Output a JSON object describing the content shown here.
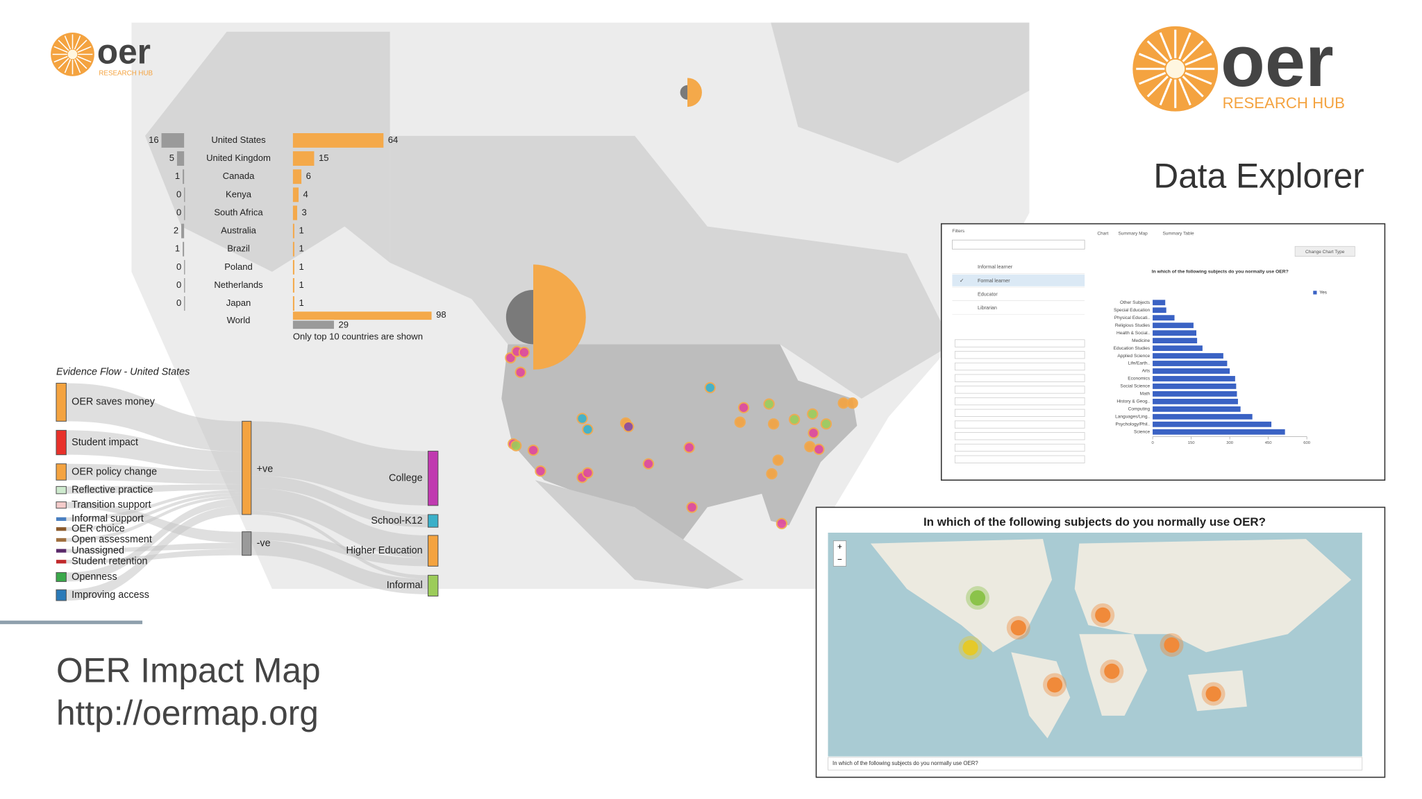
{
  "logo_small": {
    "name": "oer",
    "sub": "RESEARCH HUB"
  },
  "logo_large": {
    "name": "oer",
    "sub": "RESEARCH HUB"
  },
  "heading": "Data Explorer",
  "footer": {
    "title": "OER Impact Map",
    "url": "http://oermap.org"
  },
  "chart_data": [
    {
      "type": "bar",
      "categories": [
        "United States",
        "United Kingdom",
        "Canada",
        "Kenya",
        "South Africa",
        "Australia",
        "Brazil",
        "Poland",
        "Netherlands",
        "Japan",
        "World"
      ],
      "series": [
        {
          "color": "#9a9a9a",
          "values": [
            16,
            5,
            1,
            0,
            0,
            2,
            1,
            0,
            0,
            0,
            29
          ]
        },
        {
          "color": "#f4a94a",
          "values": [
            64,
            15,
            6,
            4,
            3,
            1,
            1,
            1,
            1,
            1,
            98
          ]
        }
      ],
      "note": "Only top 10 countries are shown"
    },
    {
      "type": "bar",
      "orientation": "horizontal",
      "title": "In which of the following subjects do you normally use OER?",
      "categories": [
        "Other Subjects",
        "Special Education",
        "Physical Educati..",
        "Religious Studies",
        "Health & Social..",
        "Medicine",
        "Education Studies",
        "Applied Science",
        "Life/Earth..",
        "Arts",
        "Economics",
        "Social Science",
        "Math",
        "History & Geog..",
        "Computing",
        "Languages/Ling..",
        "Psychology/Phil..",
        "Science"
      ],
      "series": [
        {
          "name": "Yes",
          "color": "#3a62c4",
          "values": [
            49,
            53,
            85,
            159,
            170,
            173,
            194,
            275,
            290,
            300,
            321,
            325,
            328,
            332,
            342,
            388,
            462,
            515
          ]
        }
      ],
      "xlim": [
        0,
        600
      ],
      "xticks": [
        0,
        150,
        300,
        450,
        600
      ]
    }
  ],
  "evidence_flow": {
    "title": "Evidence Flow - United States",
    "sources": [
      {
        "label": "OER saves money",
        "color": "#f4a340"
      },
      {
        "label": "Student impact",
        "color": "#e8312a"
      },
      {
        "label": "OER policy change",
        "color": "#f4a340"
      },
      {
        "label": "Reflective practice",
        "color": "#5cb85c"
      },
      {
        "label": "Transition support",
        "color": "#d9534f"
      },
      {
        "label": "Informal support",
        "color": "#4a7fc0"
      },
      {
        "label": "OER choice",
        "color": "#8b5a2b"
      },
      {
        "label": "Open assessment",
        "color": "#a07040"
      },
      {
        "label": "Unassigned",
        "color": "#5a2a6a"
      },
      {
        "label": "Student retention",
        "color": "#c0282a"
      },
      {
        "label": "Openness",
        "color": "#3aa84a"
      },
      {
        "label": "Improving access",
        "color": "#2a7ab8"
      }
    ],
    "outcomes": [
      {
        "label": "+ve",
        "color": "#f4a340"
      },
      {
        "label": "-ve",
        "color": "#9a9a9a"
      }
    ],
    "sectors": [
      {
        "label": "College",
        "color": "#c03ab0"
      },
      {
        "label": "School-K12",
        "color": "#3bb0c9"
      },
      {
        "label": "Higher Education",
        "color": "#f4a340"
      },
      {
        "label": "Informal",
        "color": "#9ccc5a"
      }
    ]
  },
  "explorer": {
    "filters": "Filters",
    "tabs": [
      "Chart",
      "Summary Map",
      "Summary Table"
    ],
    "options": [
      "Informal learner",
      "Formal learner",
      "Educator",
      "Librarian"
    ],
    "button": "Change Chart Type"
  },
  "map_panel": {
    "title": "In which of the following subjects do you normally use OER?",
    "query": "In which of the following subjects do you normally use OER?"
  }
}
